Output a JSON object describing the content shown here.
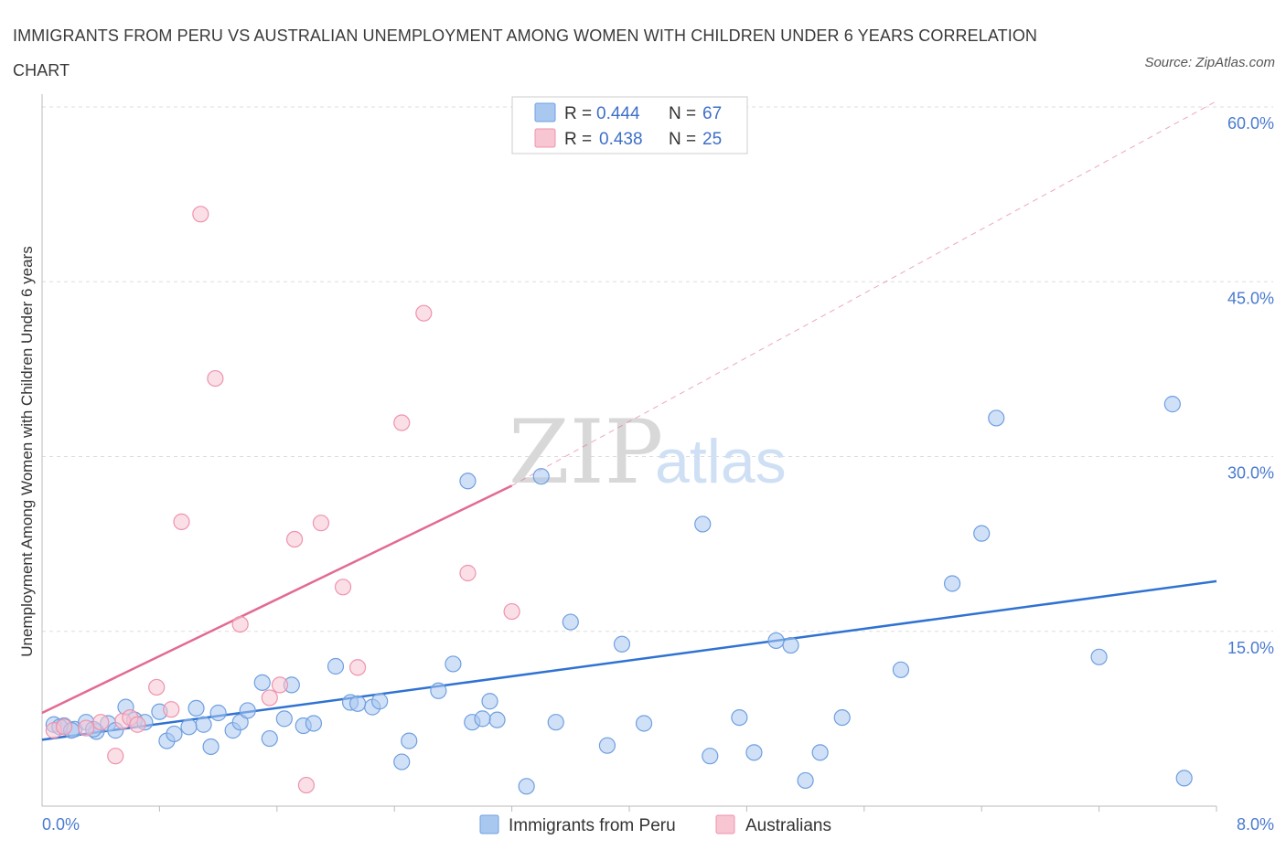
{
  "title": "IMMIGRANTS FROM PERU VS AUSTRALIAN UNEMPLOYMENT AMONG WOMEN WITH CHILDREN UNDER 6 YEARS CORRELATION CHART",
  "source": "Source: ZipAtlas.com",
  "watermark": {
    "zip": "ZIP",
    "atlas": "atlas"
  },
  "colors": {
    "blue": "#a9c8f0",
    "blue_stroke": "#6f9fe0",
    "blue_line": "#2f72d2",
    "pink": "#f8c5d3",
    "pink_stroke": "#ee93ad",
    "pink_line": "#e36a92",
    "grid": "#dddddd",
    "tick_text": "#4a7bd0"
  },
  "legend": {
    "rows": [
      {
        "r_label": "R =",
        "r_value": "0.444",
        "n_label": "N =",
        "n_value": "67"
      },
      {
        "r_label": "R =",
        "r_value": "0.438",
        "n_label": "N =",
        "n_value": "25"
      }
    ]
  },
  "bottom_legend": [
    "Immigrants from Peru",
    "Australians"
  ],
  "chart_data": {
    "type": "scatter",
    "title": "IMMIGRANTS FROM PERU VS AUSTRALIAN UNEMPLOYMENT AMONG WOMEN WITH CHILDREN UNDER 6 YEARS CORRELATION CHART",
    "xlabel": "",
    "ylabel": "Unemployment Among Women with Children Under 6 years",
    "xlim": [
      0,
      8
    ],
    "ylim": [
      0,
      60
    ],
    "x_ticks": [
      "0.0%",
      "8.0%"
    ],
    "y_ticks": [
      {
        "value": 15,
        "label": "15.0%"
      },
      {
        "value": 30,
        "label": "30.0%"
      },
      {
        "value": 45,
        "label": "45.0%"
      },
      {
        "value": 60,
        "label": "60.0%"
      }
    ],
    "grid": true,
    "legend_position": "top-center",
    "series": [
      {
        "name": "Immigrants from Peru",
        "color": "blue",
        "trend": {
          "x": [
            0,
            8
          ],
          "y": [
            5.7,
            19.3
          ]
        },
        "points": [
          [
            0.08,
            7.0
          ],
          [
            0.15,
            6.9
          ],
          [
            0.22,
            6.6
          ],
          [
            0.3,
            7.2
          ],
          [
            0.37,
            6.4
          ],
          [
            0.45,
            7.1
          ],
          [
            0.57,
            8.5
          ],
          [
            0.63,
            7.4
          ],
          [
            0.8,
            8.1
          ],
          [
            0.85,
            5.6
          ],
          [
            0.9,
            6.2
          ],
          [
            1.05,
            8.4
          ],
          [
            1.1,
            7.0
          ],
          [
            1.15,
            5.1
          ],
          [
            1.2,
            8.0
          ],
          [
            1.3,
            6.5
          ],
          [
            1.35,
            7.2
          ],
          [
            1.5,
            10.6
          ],
          [
            1.55,
            5.8
          ],
          [
            1.65,
            7.5
          ],
          [
            1.7,
            10.4
          ],
          [
            1.78,
            6.9
          ],
          [
            1.85,
            7.1
          ],
          [
            2.0,
            12.0
          ],
          [
            2.1,
            8.9
          ],
          [
            2.25,
            8.5
          ],
          [
            2.3,
            9.0
          ],
          [
            2.45,
            3.8
          ],
          [
            2.5,
            5.6
          ],
          [
            2.7,
            9.9
          ],
          [
            2.8,
            12.2
          ],
          [
            2.9,
            27.9
          ],
          [
            2.93,
            7.2
          ],
          [
            3.05,
            9.0
          ],
          [
            3.1,
            7.4
          ],
          [
            3.3,
            1.7
          ],
          [
            3.4,
            28.3
          ],
          [
            3.5,
            7.2
          ],
          [
            3.6,
            15.8
          ],
          [
            3.85,
            5.2
          ],
          [
            3.95,
            13.9
          ],
          [
            4.1,
            7.1
          ],
          [
            4.5,
            24.2
          ],
          [
            4.55,
            4.3
          ],
          [
            4.75,
            7.6
          ],
          [
            4.85,
            4.6
          ],
          [
            5.0,
            14.2
          ],
          [
            5.1,
            13.8
          ],
          [
            5.2,
            2.2
          ],
          [
            5.3,
            4.6
          ],
          [
            5.45,
            7.6
          ],
          [
            5.85,
            11.7
          ],
          [
            6.2,
            19.1
          ],
          [
            6.4,
            23.4
          ],
          [
            6.5,
            33.3
          ],
          [
            7.2,
            12.8
          ],
          [
            7.7,
            34.5
          ],
          [
            7.78,
            2.4
          ],
          [
            0.5,
            6.5
          ],
          [
            0.12,
            6.8
          ],
          [
            1.0,
            6.8
          ],
          [
            2.15,
            8.8
          ],
          [
            3.0,
            7.5
          ],
          [
            0.7,
            7.2
          ],
          [
            1.4,
            8.2
          ],
          [
            0.35,
            6.6
          ],
          [
            0.2,
            6.5
          ]
        ]
      },
      {
        "name": "Australians",
        "color": "pink",
        "trend": {
          "x": [
            0,
            3.2
          ],
          "y": [
            8.0,
            27.5
          ]
        },
        "trend_extension": {
          "x": [
            3.2,
            8
          ],
          "y": [
            27.5,
            60.5
          ]
        },
        "points": [
          [
            0.08,
            6.5
          ],
          [
            0.15,
            6.8
          ],
          [
            0.3,
            6.7
          ],
          [
            0.4,
            7.2
          ],
          [
            0.5,
            4.3
          ],
          [
            0.55,
            7.3
          ],
          [
            0.6,
            7.6
          ],
          [
            0.65,
            7.0
          ],
          [
            0.78,
            10.2
          ],
          [
            0.88,
            8.3
          ],
          [
            0.95,
            24.4
          ],
          [
            1.08,
            50.8
          ],
          [
            1.18,
            36.7
          ],
          [
            1.35,
            15.6
          ],
          [
            1.55,
            9.3
          ],
          [
            1.62,
            10.4
          ],
          [
            1.72,
            22.9
          ],
          [
            1.8,
            1.8
          ],
          [
            1.9,
            24.3
          ],
          [
            2.05,
            18.8
          ],
          [
            2.15,
            11.9
          ],
          [
            2.45,
            32.9
          ],
          [
            2.6,
            42.3
          ],
          [
            2.9,
            20.0
          ],
          [
            3.2,
            16.7
          ]
        ]
      }
    ]
  }
}
